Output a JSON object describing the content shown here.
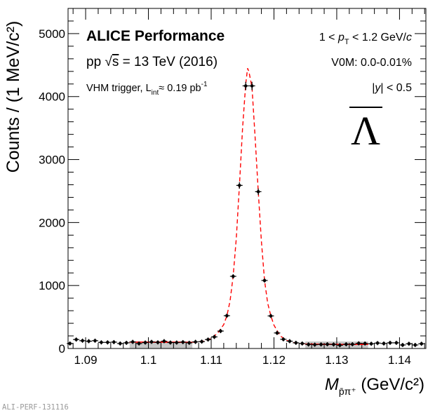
{
  "chart_data": {
    "type": "scatter",
    "xlabel_main": "M",
    "xlabel_sub": "p̄π⁺",
    "xlabel_unit": " (GeV/c²)",
    "ylabel": "Counts / (1 MeV/c²)",
    "xlim": [
      1.0872,
      1.1442
    ],
    "ylim": [
      0,
      5400
    ],
    "xticks": [
      1.09,
      1.1,
      1.11,
      1.12,
      1.13,
      1.14
    ],
    "xtick_labels": [
      "1.09",
      "1.1",
      "1.11",
      "1.12",
      "1.13",
      "1.14"
    ],
    "yticks": [
      0,
      1000,
      2000,
      3000,
      4000,
      5000
    ],
    "ytick_labels": [
      "0",
      "1000",
      "2000",
      "3000",
      "4000",
      "5000"
    ],
    "grid": false,
    "bin_width": 0.001,
    "series": [
      {
        "kind": "data-points",
        "color": "#000000",
        "x": [
          1.0875,
          1.0885,
          1.0895,
          1.0905,
          1.0915,
          1.0925,
          1.0935,
          1.0945,
          1.0955,
          1.0965,
          1.0975,
          1.0985,
          1.0995,
          1.1005,
          1.1015,
          1.1025,
          1.1035,
          1.1045,
          1.1055,
          1.1065,
          1.1075,
          1.1085,
          1.1095,
          1.1105,
          1.1115,
          1.1125,
          1.1135,
          1.1145,
          1.1155,
          1.1165,
          1.1175,
          1.1185,
          1.1195,
          1.1205,
          1.1215,
          1.1225,
          1.1235,
          1.1245,
          1.1255,
          1.1265,
          1.1275,
          1.1285,
          1.1295,
          1.1305,
          1.1315,
          1.1325,
          1.1335,
          1.1345,
          1.1355,
          1.1365,
          1.1375,
          1.1385,
          1.1395,
          1.1405,
          1.1415,
          1.1425,
          1.1435
        ],
        "y": [
          79,
          142,
          124,
          116,
          124,
          97,
          97,
          101,
          79,
          90,
          105,
          79,
          94,
          105,
          97,
          116,
          94,
          94,
          101,
          90,
          105,
          109,
          142,
          184,
          277,
          520,
          1146,
          2590,
          4170,
          4170,
          2490,
          1080,
          517,
          247,
          146,
          116,
          90,
          79,
          64,
          60,
          64,
          67,
          64,
          52,
          67,
          67,
          82,
          79,
          75,
          86,
          79,
          90,
          90,
          56,
          75,
          56,
          75
        ]
      },
      {
        "kind": "fit",
        "color": "#ff0000",
        "x": [
          1.097,
          1.1,
          1.103,
          1.107,
          1.109,
          1.11,
          1.111,
          1.112,
          1.1125,
          1.113,
          1.1135,
          1.114,
          1.1145,
          1.115,
          1.1155,
          1.1158,
          1.116,
          1.1165,
          1.117,
          1.1175,
          1.118,
          1.1185,
          1.119,
          1.1195,
          1.12,
          1.121,
          1.122,
          1.123,
          1.125,
          1.128,
          1.131,
          1.135
        ],
        "y": [
          102,
          101,
          100,
          98,
          120,
          160,
          240,
          380,
          520,
          750,
          1150,
          1750,
          2590,
          3500,
          4200,
          4450,
          4400,
          4150,
          3350,
          2490,
          1700,
          1080,
          720,
          520,
          370,
          200,
          130,
          95,
          70,
          66,
          65,
          64
        ]
      }
    ],
    "sidebands": [
      {
        "range": [
          1.097,
          1.107
        ],
        "color": "#c8c8c8"
      },
      {
        "range": [
          1.125,
          1.135
        ],
        "color": "#c8c8c8"
      }
    ],
    "annotations": {
      "experiment": "ALICE Performance",
      "system_pre": "pp ",
      "system_sqrt": "√",
      "system_s": "s",
      "system_post": " = 13 TeV (2016)",
      "trigger_pre": "VHM trigger, L",
      "trigger_sub": "int",
      "trigger_post": "≈ 0.19 pb",
      "trigger_sup": "-1",
      "pt_pre": "1 < ",
      "pt_p": "p",
      "pt_sub": "T",
      "pt_post": " < 1.2 GeV/",
      "pt_c": "c",
      "multiplicity": "V0M: 0.0-0.01%",
      "rapidity_pre": "|",
      "rapidity_y": "y",
      "rapidity_post": "| < 0.5",
      "particle": "Λ"
    },
    "footer_id": "ALI-PERF-131116"
  }
}
